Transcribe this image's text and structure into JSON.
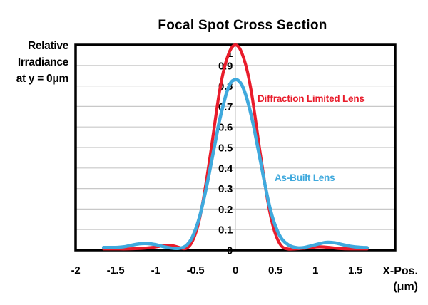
{
  "chart_data": {
    "type": "line",
    "title": "Focal Spot Cross Section",
    "ylabel": "Relative Irradiance at y = 0μm",
    "ylabel_lines": [
      "Relative",
      "Irradiance",
      "at y = 0μm"
    ],
    "xlabel": "X-Pos. (μm)",
    "xlabel_lines": [
      "X-Pos.",
      "(μm)"
    ],
    "xlim": [
      -2,
      2
    ],
    "ylim": [
      0,
      1
    ],
    "x_ticks": [
      {
        "label": "-2",
        "value": -2
      },
      {
        "label": "-1.5",
        "value": -1.5
      },
      {
        "label": "-1",
        "value": -1
      },
      {
        "label": "-0.5",
        "value": -0.5
      },
      {
        "label": "0",
        "value": 0
      },
      {
        "label": "0.5",
        "value": 0.5
      },
      {
        "label": "1",
        "value": 1
      },
      {
        "label": "1.5",
        "value": 1.5
      }
    ],
    "y_ticks": [
      {
        "label": "1",
        "value": 1
      },
      {
        "label": "0.9",
        "value": 0.9
      },
      {
        "label": "0.8",
        "value": 0.8
      },
      {
        "label": "0.7",
        "value": 0.7
      },
      {
        "label": "0.6",
        "value": 0.6
      },
      {
        "label": "0.5",
        "value": 0.5
      },
      {
        "label": "0.4",
        "value": 0.4
      },
      {
        "label": "0.3",
        "value": 0.3
      },
      {
        "label": "0.2",
        "value": 0.2
      },
      {
        "label": "0.1",
        "value": 0.1
      },
      {
        "label": "0",
        "value": 0
      }
    ],
    "grid": {
      "horizontal": true,
      "vertical_line_at_x0": true
    },
    "grid_color": "#c8c8c8",
    "border_color": "#000000",
    "legend_position": "inside-right",
    "series": [
      {
        "name": "Diffraction Limited Lens",
        "color": "#e91c2b",
        "peak": 1.0,
        "points": [
          [
            -1.65,
            0.006
          ],
          [
            -1.5,
            0.006
          ],
          [
            -1.35,
            0.006
          ],
          [
            -1.2,
            0.008
          ],
          [
            -1.05,
            0.013
          ],
          [
            -0.92,
            0.02
          ],
          [
            -0.82,
            0.023
          ],
          [
            -0.73,
            0.016
          ],
          [
            -0.65,
            0.007
          ],
          [
            -0.6,
            0.012
          ],
          [
            -0.55,
            0.035
          ],
          [
            -0.5,
            0.08
          ],
          [
            -0.45,
            0.15
          ],
          [
            -0.4,
            0.25
          ],
          [
            -0.35,
            0.37
          ],
          [
            -0.3,
            0.5
          ],
          [
            -0.25,
            0.64
          ],
          [
            -0.2,
            0.77
          ],
          [
            -0.15,
            0.87
          ],
          [
            -0.1,
            0.94
          ],
          [
            -0.05,
            0.985
          ],
          [
            0,
            1.0
          ],
          [
            0.05,
            0.985
          ],
          [
            0.1,
            0.94
          ],
          [
            0.15,
            0.87
          ],
          [
            0.2,
            0.77
          ],
          [
            0.25,
            0.64
          ],
          [
            0.3,
            0.5
          ],
          [
            0.35,
            0.37
          ],
          [
            0.4,
            0.25
          ],
          [
            0.45,
            0.15
          ],
          [
            0.5,
            0.08
          ],
          [
            0.55,
            0.035
          ],
          [
            0.6,
            0.012
          ],
          [
            0.67,
            0.005
          ],
          [
            0.75,
            0.006
          ],
          [
            0.85,
            0.009
          ],
          [
            0.95,
            0.013
          ],
          [
            1.05,
            0.016
          ],
          [
            1.15,
            0.014
          ],
          [
            1.25,
            0.01
          ],
          [
            1.35,
            0.007
          ],
          [
            1.5,
            0.006
          ],
          [
            1.65,
            0.006
          ]
        ]
      },
      {
        "name": "As-Built Lens",
        "color": "#3fa9dd",
        "peak": 0.83,
        "points": [
          [
            -1.65,
            0.013
          ],
          [
            -1.5,
            0.013
          ],
          [
            -1.4,
            0.016
          ],
          [
            -1.3,
            0.024
          ],
          [
            -1.2,
            0.031
          ],
          [
            -1.1,
            0.032
          ],
          [
            -1.0,
            0.027
          ],
          [
            -0.9,
            0.017
          ],
          [
            -0.8,
            0.01
          ],
          [
            -0.72,
            0.008
          ],
          [
            -0.65,
            0.014
          ],
          [
            -0.6,
            0.028
          ],
          [
            -0.55,
            0.055
          ],
          [
            -0.5,
            0.1
          ],
          [
            -0.45,
            0.16
          ],
          [
            -0.4,
            0.24
          ],
          [
            -0.35,
            0.33
          ],
          [
            -0.3,
            0.43
          ],
          [
            -0.25,
            0.53
          ],
          [
            -0.2,
            0.63
          ],
          [
            -0.15,
            0.71
          ],
          [
            -0.1,
            0.78
          ],
          [
            -0.05,
            0.82
          ],
          [
            0.02,
            0.83
          ],
          [
            0.08,
            0.805
          ],
          [
            0.13,
            0.755
          ],
          [
            0.18,
            0.685
          ],
          [
            0.23,
            0.6
          ],
          [
            0.28,
            0.5
          ],
          [
            0.33,
            0.4
          ],
          [
            0.38,
            0.3
          ],
          [
            0.43,
            0.21
          ],
          [
            0.48,
            0.14
          ],
          [
            0.53,
            0.09
          ],
          [
            0.58,
            0.055
          ],
          [
            0.64,
            0.032
          ],
          [
            0.7,
            0.018
          ],
          [
            0.78,
            0.011
          ],
          [
            0.85,
            0.012
          ],
          [
            0.95,
            0.021
          ],
          [
            1.05,
            0.031
          ],
          [
            1.15,
            0.038
          ],
          [
            1.25,
            0.035
          ],
          [
            1.35,
            0.026
          ],
          [
            1.45,
            0.018
          ],
          [
            1.55,
            0.014
          ],
          [
            1.65,
            0.012
          ]
        ]
      }
    ]
  }
}
